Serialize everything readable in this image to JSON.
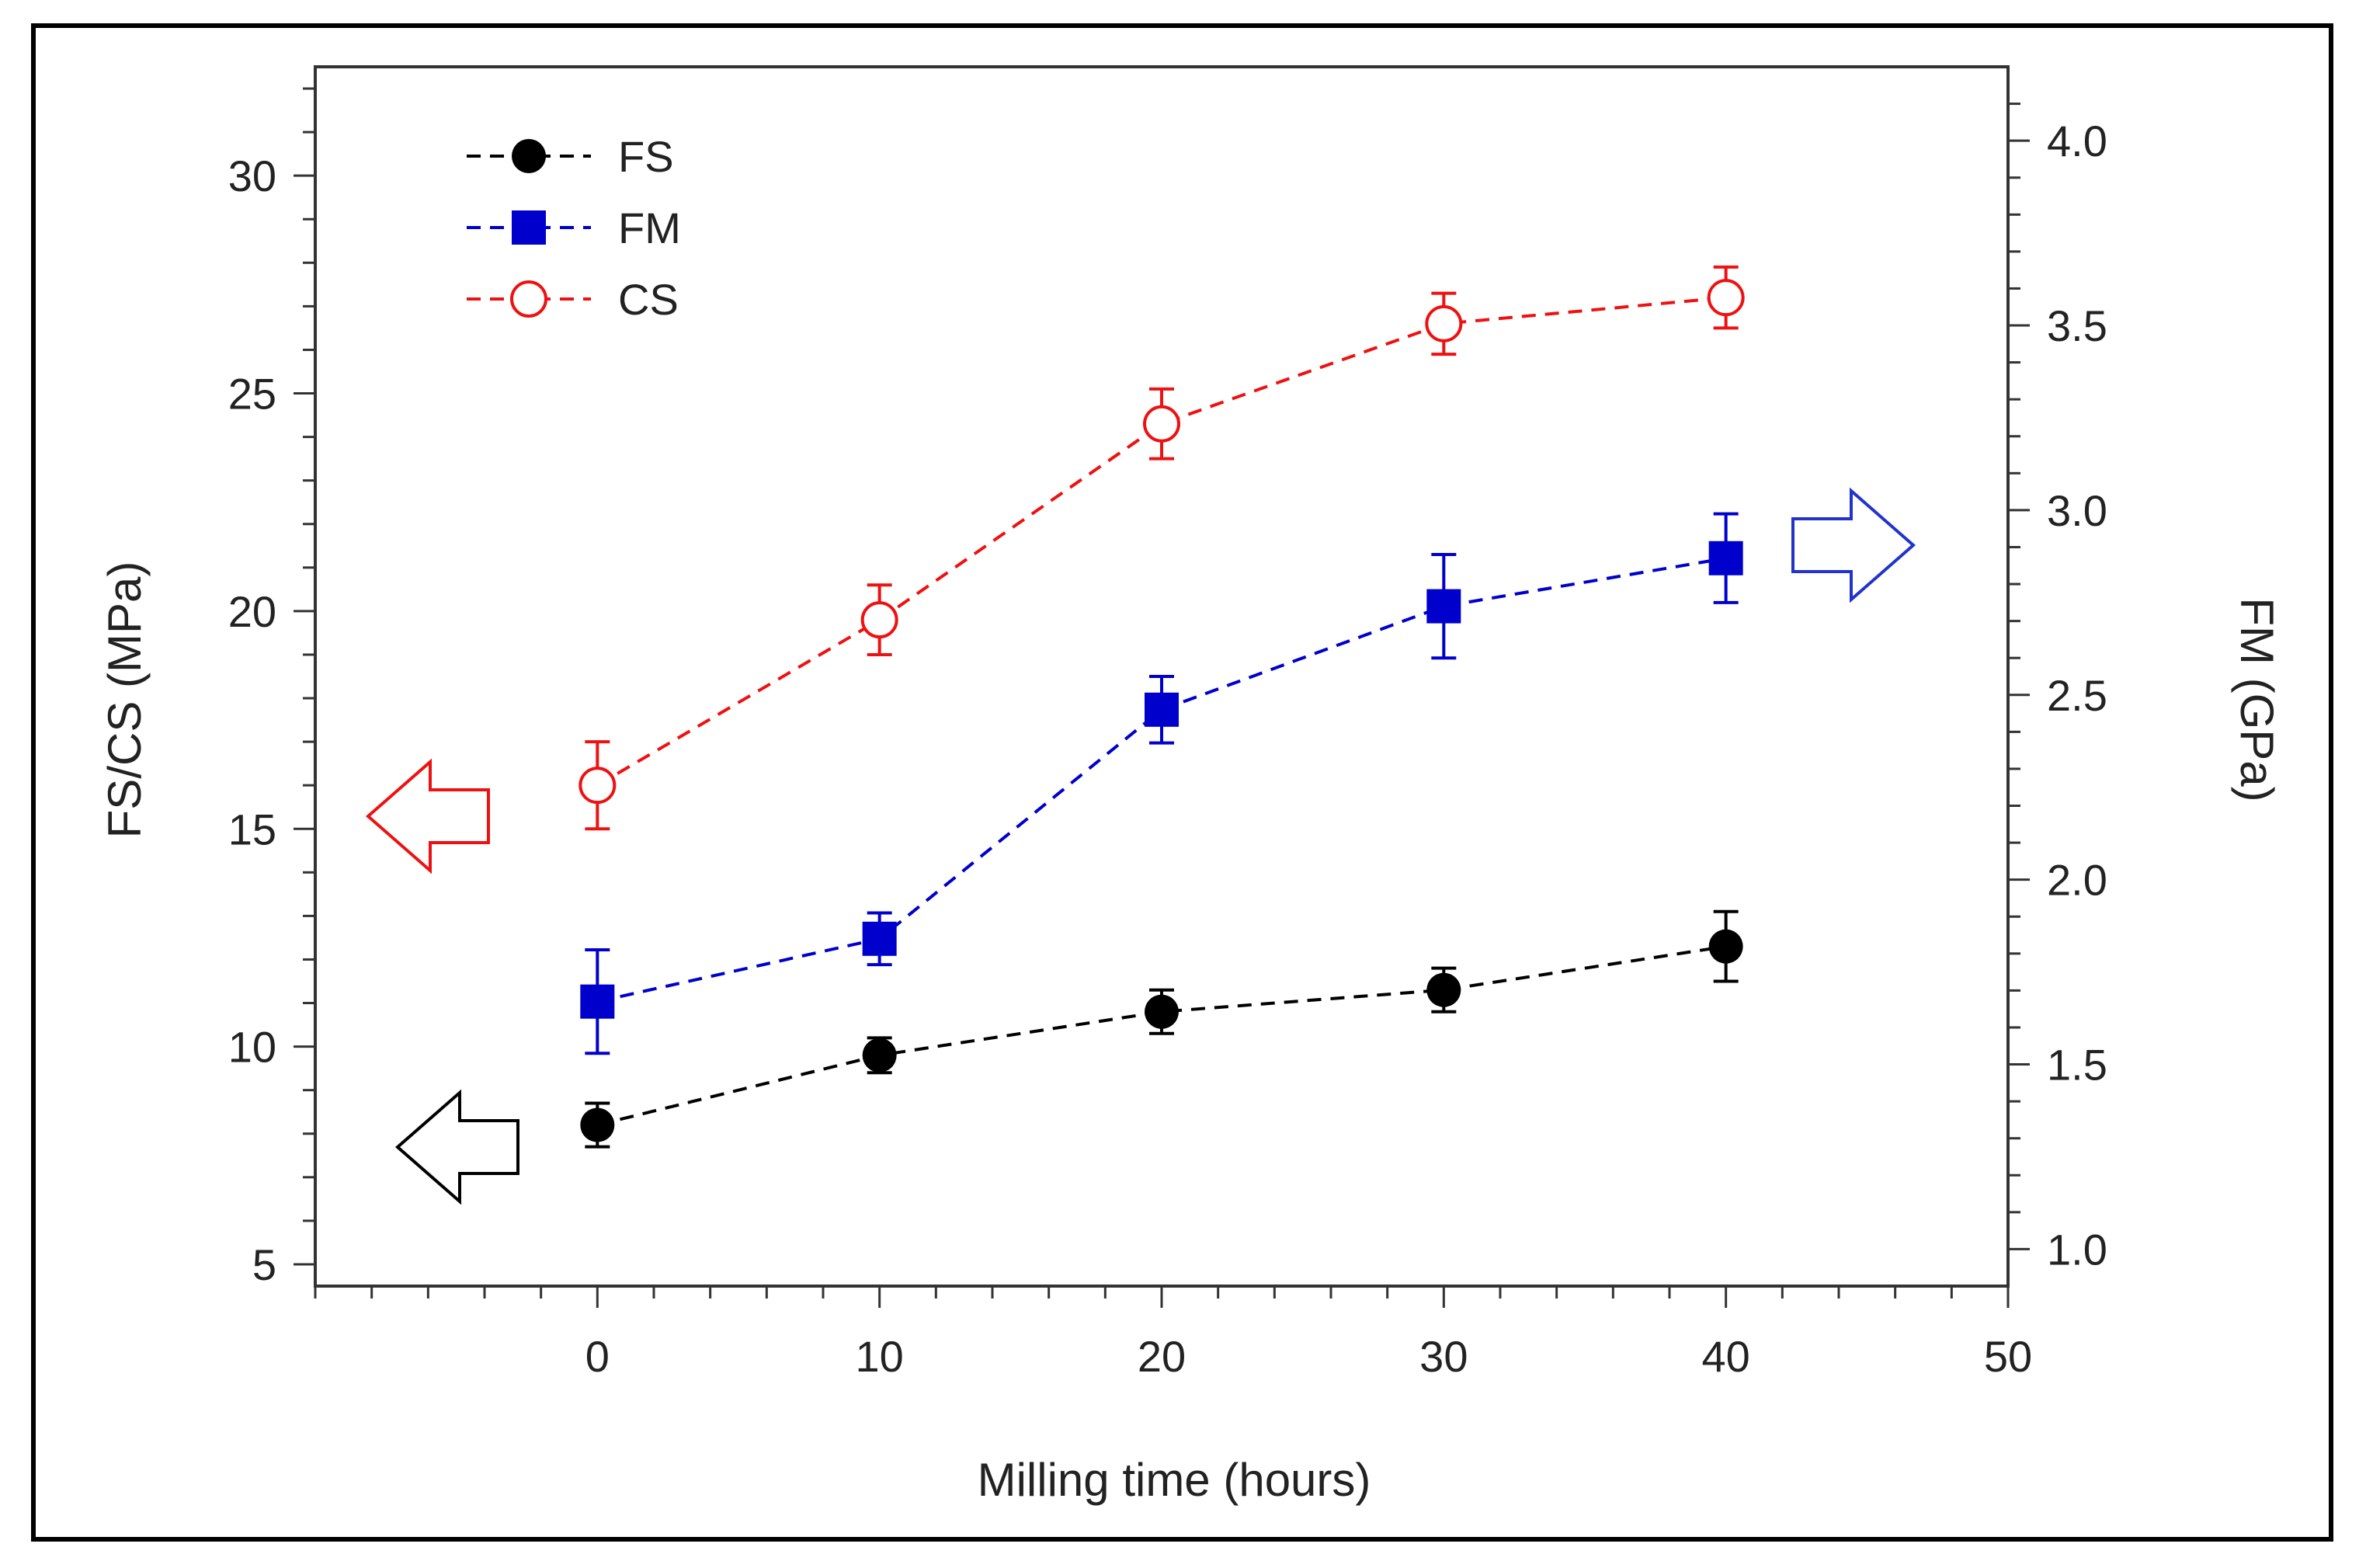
{
  "chart_data": {
    "type": "line",
    "title": "",
    "xlabel": "Milling time (hours)",
    "ylabel_left": "FS/CS (MPa)",
    "ylabel_right": "FM (GPa)",
    "xlim": [
      -10,
      50
    ],
    "ylim_left": [
      4.5,
      32.5
    ],
    "ylim_right": [
      0.9,
      4.2
    ],
    "x_ticks": [
      "0",
      "10",
      "20",
      "30",
      "40",
      "50"
    ],
    "y_left_ticks": [
      "5",
      "10",
      "15",
      "20",
      "25",
      "30"
    ],
    "y_right_ticks": [
      "1.0",
      "1.5",
      "2.0",
      "2.5",
      "3.0",
      "3.5",
      "4.0"
    ],
    "grid": false,
    "legend_position": "top-left",
    "series": [
      {
        "name": "FS",
        "axis": "left",
        "color": "#000000",
        "marker": "filled-circle",
        "x": [
          0,
          10,
          20,
          30,
          40
        ],
        "y": [
          8.2,
          9.8,
          10.8,
          11.3,
          12.3
        ],
        "error": [
          0.5,
          0.4,
          0.5,
          0.5,
          0.8
        ]
      },
      {
        "name": "FM",
        "axis": "right",
        "color": "#0000cc",
        "marker": "filled-square",
        "x": [
          0,
          10,
          20,
          30,
          40
        ],
        "y": [
          1.67,
          1.84,
          2.46,
          2.74,
          2.87
        ],
        "error": [
          0.14,
          0.07,
          0.09,
          0.14,
          0.12
        ]
      },
      {
        "name": "CS",
        "axis": "left",
        "color": "#ee1111",
        "marker": "open-circle",
        "x": [
          0,
          10,
          20,
          30,
          40
        ],
        "y": [
          16.0,
          19.8,
          24.3,
          26.6,
          27.2
        ],
        "error": [
          1.0,
          0.8,
          0.8,
          0.7,
          0.7
        ]
      }
    ],
    "annotations": [
      {
        "shape": "arrow-left",
        "color": "#ee1111",
        "meaning": "CS on left axis"
      },
      {
        "shape": "arrow-left",
        "color": "#000000",
        "meaning": "FS on left axis"
      },
      {
        "shape": "arrow-right",
        "color": "#2233cc",
        "meaning": "FM on right axis"
      }
    ]
  }
}
